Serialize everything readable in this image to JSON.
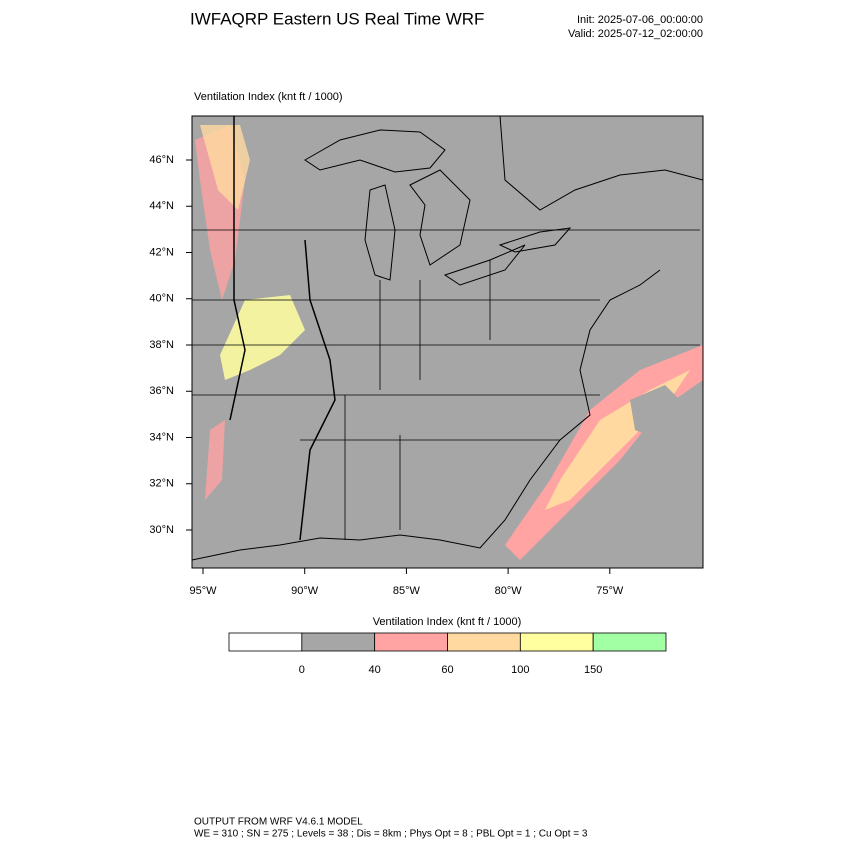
{
  "header": {
    "title": "IWFAQRP Eastern US Real Time WRF",
    "init": "Init: 2025-07-06_00:00:00",
    "valid": "Valid: 2025-07-12_02:00:00"
  },
  "map": {
    "title": "Ventilation Index   (knt ft / 1000)",
    "lat_labels": [
      "46°N",
      "44°N",
      "42°N",
      "40°N",
      "38°N",
      "36°N",
      "34°N",
      "32°N",
      "30°N"
    ],
    "lon_labels": [
      "95°W",
      "90°W",
      "85°W",
      "80°W",
      "75°W"
    ]
  },
  "colorbar": {
    "title": "Ventilation Index  (knt ft / 1000)",
    "colors": [
      "#ffffff",
      "#a6a6a6",
      "#ffa3a3",
      "#ffd9a0",
      "#ffff9f",
      "#a3ffa3"
    ],
    "labels": [
      "0",
      "40",
      "60",
      "100",
      "150"
    ]
  },
  "footer": {
    "line1": "OUTPUT FROM WRF V4.6.1 MODEL",
    "line2": "WE = 310 ; SN = 275 ; Levels = 38 ; Dis = 8km ; Phys Opt = 8 ; PBL Opt = 1 ; Cu Opt = 3"
  }
}
